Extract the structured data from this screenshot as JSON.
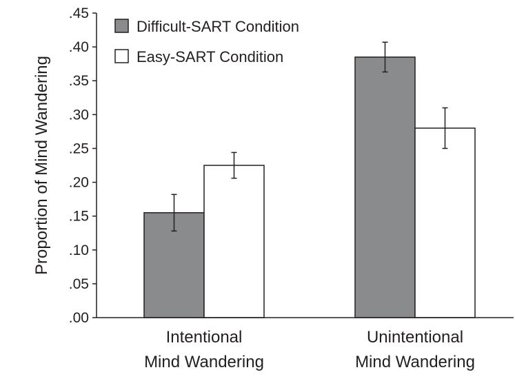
{
  "chart_data": {
    "type": "bar",
    "title": "",
    "xlabel": "",
    "ylabel": "Proportion of Mind Wandering",
    "ylim": [
      0,
      0.45
    ],
    "yticks": [
      ".00",
      ".05",
      ".10",
      ".15",
      ".20",
      ".25",
      ".30",
      ".35",
      ".40",
      ".45"
    ],
    "ytick_values": [
      0,
      0.05,
      0.1,
      0.15,
      0.2,
      0.25,
      0.3,
      0.35,
      0.4,
      0.45
    ],
    "categories": [
      [
        "Intentional",
        "Mind Wandering"
      ],
      [
        "Unintentional",
        "Mind Wandering"
      ]
    ],
    "series": [
      {
        "name": "Difficult-SART Condition",
        "color": "#8a8b8d",
        "values": [
          0.155,
          0.385
        ],
        "error": [
          0.027,
          0.022
        ]
      },
      {
        "name": "Easy-SART Condition",
        "color": "#ffffff",
        "values": [
          0.225,
          0.28
        ],
        "error": [
          0.019,
          0.03
        ]
      }
    ],
    "grid": false,
    "legend": "top-left"
  }
}
